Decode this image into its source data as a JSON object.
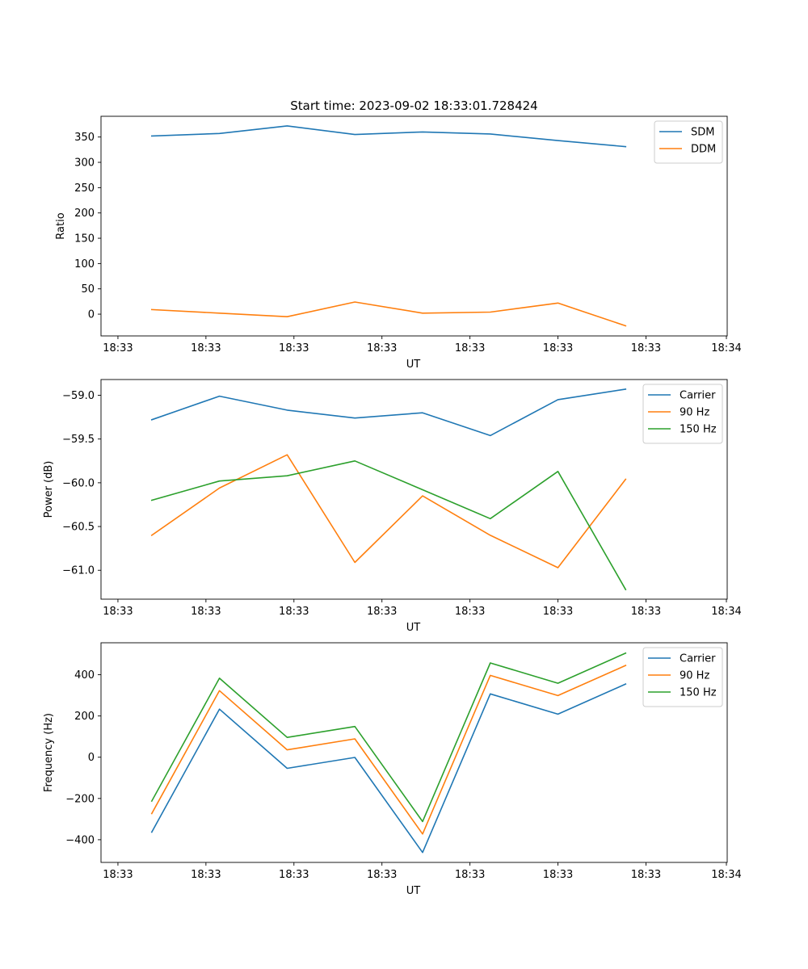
{
  "chart_data": [
    {
      "type": "line",
      "title": "Start time: 2023-09-02 18:33:01.728424",
      "xlabel": "UT",
      "ylabel": "Ratio",
      "x_tick_labels": [
        "18:33",
        "18:33",
        "18:33",
        "18:33",
        "18:33",
        "18:33",
        "18:33"
      ],
      "x_end_tick_label": "18:34",
      "xlim": [
        -0.25,
        9.0
      ],
      "x": [
        0.5,
        1.5,
        2.5,
        3.5,
        4.5,
        5.5,
        6.5,
        7.5
      ],
      "ylim": [
        -43,
        391
      ],
      "yticks": [
        0,
        50,
        100,
        150,
        200,
        250,
        300,
        350
      ],
      "grid": false,
      "legend": "top-right",
      "series": [
        {
          "name": "SDM",
          "color": "#1f77b4",
          "values": [
            352,
            357,
            372,
            355,
            360,
            356,
            343,
            331
          ]
        },
        {
          "name": "DDM",
          "color": "#ff7f0e",
          "values": [
            9,
            2,
            -5,
            24,
            2,
            4,
            22,
            -23
          ]
        }
      ]
    },
    {
      "type": "line",
      "title": "",
      "xlabel": "UT",
      "ylabel": "Power (dB)",
      "x_tick_labels": [
        "18:33",
        "18:33",
        "18:33",
        "18:33",
        "18:33",
        "18:33",
        "18:33"
      ],
      "x_end_tick_label": "18:34",
      "xlim": [
        -0.25,
        9.0
      ],
      "x": [
        0.5,
        1.5,
        2.5,
        3.5,
        4.5,
        5.5,
        6.5,
        7.5
      ],
      "ylim": [
        -61.33,
        -58.82
      ],
      "yticks": [
        -61.0,
        -60.5,
        -60.0,
        -59.5,
        -59.0
      ],
      "ytick_labels": [
        "−61.0",
        "−60.5",
        "−60.0",
        "−59.5",
        "−59.0"
      ],
      "grid": false,
      "legend": "top-right",
      "series": [
        {
          "name": "Carrier",
          "color": "#1f77b4",
          "values": [
            -59.28,
            -59.01,
            -59.17,
            -59.26,
            -59.2,
            -59.46,
            -59.05,
            -58.93
          ]
        },
        {
          "name": "90 Hz",
          "color": "#ff7f0e",
          "values": [
            -60.6,
            -60.06,
            -59.68,
            -60.91,
            -60.15,
            -60.6,
            -60.97,
            -59.96
          ]
        },
        {
          "name": "150 Hz",
          "color": "#2ca02c",
          "values": [
            -60.2,
            -59.98,
            -59.92,
            -59.75,
            -60.08,
            -60.41,
            -59.87,
            -61.22
          ]
        }
      ]
    },
    {
      "type": "line",
      "title": "",
      "xlabel": "UT",
      "ylabel": "Frequency (Hz)",
      "x_tick_labels": [
        "18:33",
        "18:33",
        "18:33",
        "18:33",
        "18:33",
        "18:33",
        "18:33"
      ],
      "x_end_tick_label": "18:34",
      "xlim": [
        -0.25,
        9.0
      ],
      "x": [
        0.5,
        1.5,
        2.5,
        3.5,
        4.5,
        5.5,
        6.5,
        7.5
      ],
      "ylim": [
        -510,
        555
      ],
      "yticks": [
        -400,
        -200,
        0,
        200,
        400
      ],
      "ytick_labels": [
        "−400",
        "−200",
        "0",
        "200",
        "400"
      ],
      "grid": false,
      "legend": "top-right",
      "series": [
        {
          "name": "Carrier",
          "color": "#1f77b4",
          "values": [
            -363,
            233,
            -54,
            -1,
            -462,
            307,
            209,
            355
          ]
        },
        {
          "name": "90 Hz",
          "color": "#ff7f0e",
          "values": [
            -273,
            323,
            36,
            89,
            -372,
            397,
            299,
            445
          ]
        },
        {
          "name": "150 Hz",
          "color": "#2ca02c",
          "values": [
            -213,
            383,
            96,
            149,
            -312,
            457,
            359,
            505
          ]
        }
      ]
    }
  ]
}
